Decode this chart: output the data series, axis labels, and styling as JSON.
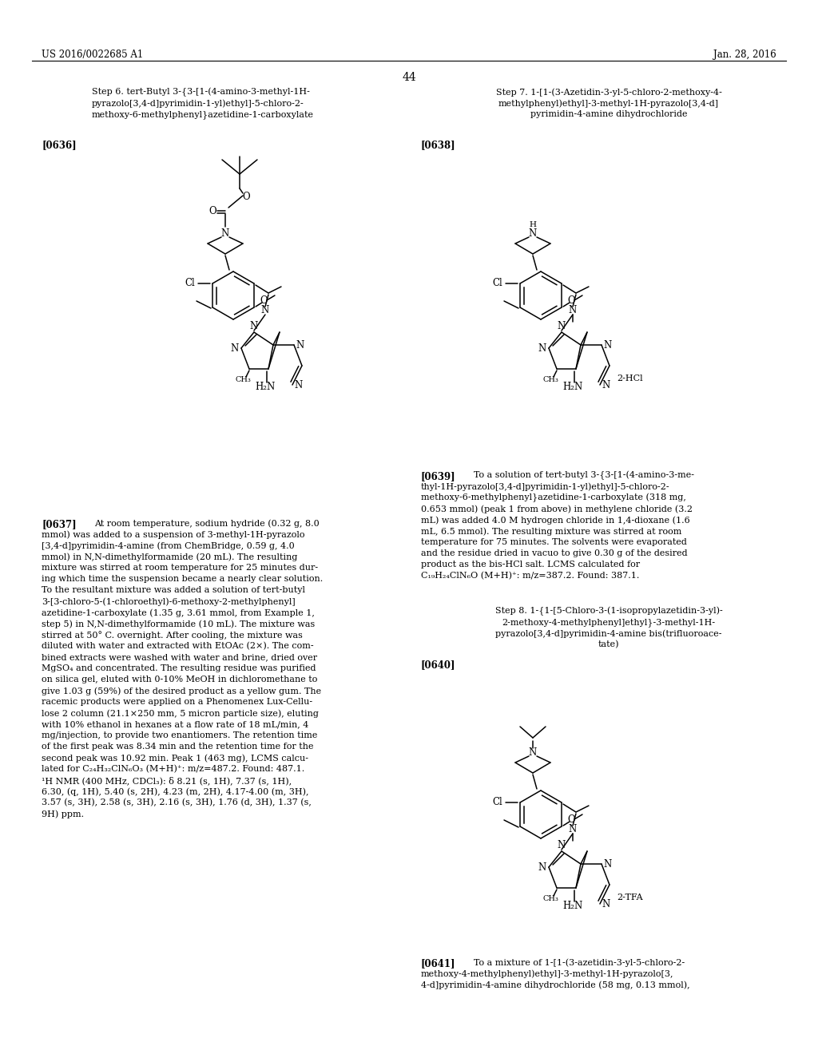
{
  "background_color": "#ffffff",
  "page_header_left": "US 2016/0022685 A1",
  "page_header_right": "Jan. 28, 2016",
  "page_number": "44",
  "step6_title_lines": [
    "Step 6. tert-Butyl 3-{3-[1-(4-amino-3-methyl-1H-",
    "pyrazolo[3,4-d]pyrimidin-1-yl)ethyl]-5-chloro-2-",
    "methoxy-6-methylphenyl}azetidine-1-carboxylate"
  ],
  "step7_title_lines": [
    "Step 7. 1-[1-(3-Azetidin-3-yl-5-chloro-2-methoxy-4-",
    "methylphenyl)ethyl]-3-methyl-1H-pyrazolo[3,4-d]",
    "pyrimidin-4-amine dihydrochloride"
  ],
  "step8_title_lines": [
    "Step 8. 1-{1-[5-Chloro-3-(1-isopropylazetidin-3-yl)-",
    "2-methoxy-4-methylphenyl]ethyl}-3-methyl-1H-",
    "pyrazolo[3,4-d]pyrimidin-4-amine bis(trifluoroace-",
    "tate)"
  ],
  "ref636": "[0636]",
  "ref638": "[0638]",
  "ref640": "[0640]",
  "ref637_label": "[0637]",
  "ref637_text_lines": [
    "At room temperature, sodium hydride (0.32 g, 8.0",
    "mmol) was added to a suspension of 3-methyl-1H-pyrazolo",
    "[3,4-d]pyrimidin-4-amine (from ChemBridge, 0.59 g, 4.0",
    "mmol) in N,N-dimethylformamide (20 mL). The resulting",
    "mixture was stirred at room temperature for 25 minutes dur-",
    "ing which time the suspension became a nearly clear solution.",
    "To the resultant mixture was added a solution of tert-butyl",
    "3-[3-chloro-5-(1-chloroethyl)-6-methoxy-2-methylphenyl]",
    "azetidine-1-carboxylate (1.35 g, 3.61 mmol, from Example 1,",
    "step 5) in N,N-dimethylformamide (10 mL). The mixture was",
    "stirred at 50° C. overnight. After cooling, the mixture was",
    "diluted with water and extracted with EtOAc (2×). The com-",
    "bined extracts were washed with water and brine, dried over",
    "MgSO₄ and concentrated. The resulting residue was purified",
    "on silica gel, eluted with 0-10% MeOH in dichloromethane to",
    "give 1.03 g (59%) of the desired product as a yellow gum. The",
    "racemic products were applied on a Phenomenex Lux-Cellu-",
    "lose 2 column (21.1×250 mm, 5 micron particle size), eluting",
    "with 10% ethanol in hexanes at a flow rate of 18 mL/min, 4",
    "mg/injection, to provide two enantiomers. The retention time",
    "of the first peak was 8.34 min and the retention time for the",
    "second peak was 10.92 min. Peak 1 (463 mg), LCMS calcu-",
    "lated for C₂₄H₃₂ClN₆O₃ (M+H)⁺: m/z=487.2. Found: 487.1.",
    "¹H NMR (400 MHz, CDCl₃): δ 8.21 (s, 1H), 7.37 (s, 1H),",
    "6.30, (q, 1H), 5.40 (s, 2H), 4.23 (m, 2H), 4.17-4.00 (m, 3H),",
    "3.57 (s, 3H), 2.58 (s, 3H), 2.16 (s, 3H), 1.76 (d, 3H), 1.37 (s,",
    "9H) ppm."
  ],
  "ref639_label": "[0639]",
  "ref639_text_lines": [
    "To a solution of tert-butyl 3-{3-[1-(4-amino-3-me-",
    "thyl-1H-pyrazolo[3,4-d]pyrimidin-1-yl)ethyl]-5-chloro-2-",
    "methoxy-6-methylphenyl}azetidine-1-carboxylate (318 mg,",
    "0.653 mmol) (peak 1 from above) in methylene chloride (3.2",
    "mL) was added 4.0 M hydrogen chloride in 1,4-dioxane (1.6",
    "mL, 6.5 mmol). The resulting mixture was stirred at room",
    "temperature for 75 minutes. The solvents were evaporated",
    "and the residue dried in vacuo to give 0.30 g of the desired",
    "product as the bis-HCl salt. LCMS calculated for",
    "C₁₉H₂₄ClN₆O (M+H)⁺: m/z=387.2. Found: 387.1."
  ],
  "ref641_label": "[0641]",
  "ref641_text_lines": [
    "To a mixture of 1-[1-(3-azetidin-3-yl-5-chloro-2-",
    "methoxy-4-methylphenyl)ethyl]-3-methyl-1H-pyrazolo[3,",
    "4-d]pyrimidin-4-amine dihydrochloride (58 mg, 0.13 mmol),"
  ]
}
